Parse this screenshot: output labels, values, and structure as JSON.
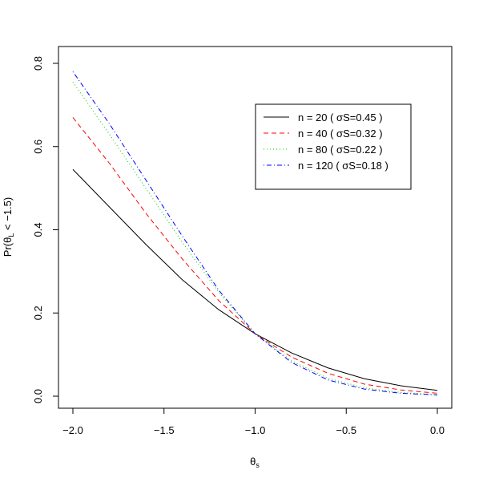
{
  "chart_data": {
    "type": "line",
    "xlabel": "θs",
    "ylabel": "Pr(θL < −1.5)",
    "xlim": [
      -2.0,
      0.0
    ],
    "ylim": [
      0.0,
      0.8
    ],
    "grid": false,
    "legend_position": "top-right",
    "x_ticks": [
      -2.0,
      -1.5,
      -1.0,
      -0.5,
      0.0
    ],
    "x_tick_labels": [
      "−2.0",
      "−1.5",
      "−1.0",
      "−0.5",
      "0.0"
    ],
    "y_ticks": [
      0.0,
      0.2,
      0.4,
      0.6,
      0.8
    ],
    "y_tick_labels": [
      "0.0",
      "0.2",
      "0.4",
      "0.6",
      "0.8"
    ],
    "x": [
      -2.0,
      -1.8,
      -1.6,
      -1.4,
      -1.2,
      -1.0,
      -0.8,
      -0.6,
      -0.4,
      -0.2,
      0.0
    ],
    "series": [
      {
        "name": "n = 20 ( σS=0.45 )",
        "color": "#000000",
        "dash": "solid",
        "values": [
          0.545,
          0.455,
          0.365,
          0.28,
          0.208,
          0.15,
          0.104,
          0.068,
          0.042,
          0.025,
          0.014
        ]
      },
      {
        "name": "n = 40 ( σS=0.32 )",
        "color": "#ff0000",
        "dash": "dashed",
        "values": [
          0.67,
          0.56,
          0.44,
          0.33,
          0.23,
          0.15,
          0.094,
          0.055,
          0.029,
          0.015,
          0.007
        ]
      },
      {
        "name": "n = 80 ( σS=0.22 )",
        "color": "#00cd00",
        "dash": "dotted",
        "values": [
          0.755,
          0.63,
          0.5,
          0.37,
          0.25,
          0.15,
          0.085,
          0.043,
          0.02,
          0.009,
          0.004
        ]
      },
      {
        "name": "n = 120 ( σS=0.18 )",
        "color": "#0000ff",
        "dash": "dotdash",
        "values": [
          0.78,
          0.655,
          0.52,
          0.385,
          0.255,
          0.15,
          0.081,
          0.039,
          0.017,
          0.007,
          0.003
        ]
      }
    ]
  }
}
